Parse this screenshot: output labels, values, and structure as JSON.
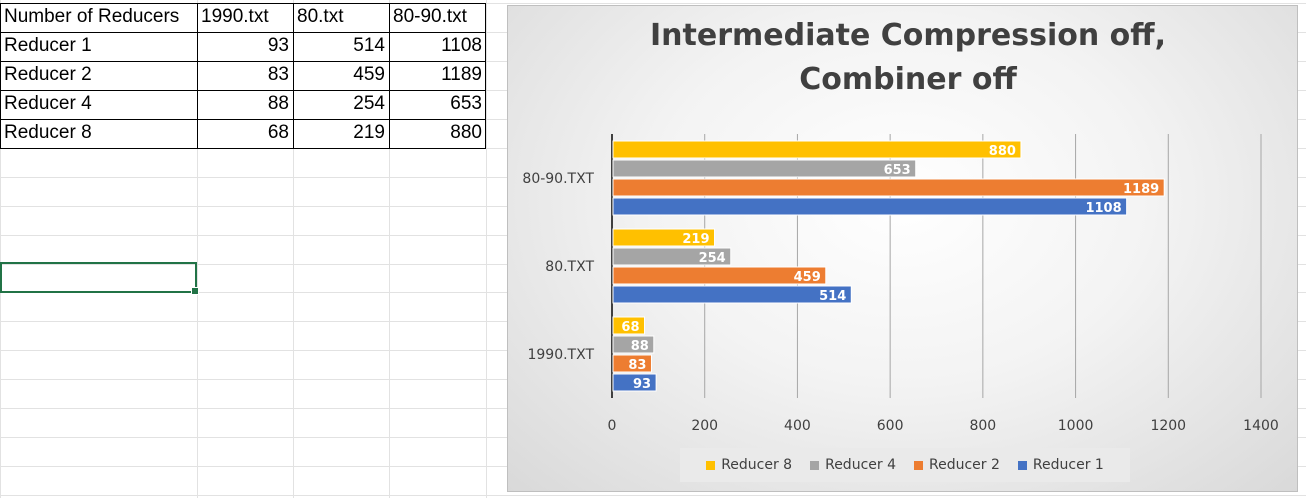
{
  "table": {
    "headers": [
      "Number of Reducers",
      "1990.txt",
      "80.txt",
      "80-90.txt"
    ],
    "rows": [
      {
        "label": "Reducer 1",
        "values": [
          "93",
          "514",
          "1108"
        ]
      },
      {
        "label": "Reducer 2",
        "values": [
          "83",
          "459",
          "1189"
        ]
      },
      {
        "label": "Reducer 4",
        "values": [
          "88",
          "254",
          "653"
        ]
      },
      {
        "label": "Reducer 8",
        "values": [
          "68",
          "219",
          "880"
        ]
      }
    ]
  },
  "chart_data": {
    "type": "bar",
    "orientation": "horizontal",
    "title": "Intermediate Compression off, Combiner off",
    "categories": [
      "1990.TXT",
      "80.TXT",
      "80-90.TXT"
    ],
    "series": [
      {
        "name": "Reducer 1",
        "values": [
          93,
          514,
          1108
        ],
        "color": "#4472c4"
      },
      {
        "name": "Reducer 2",
        "values": [
          83,
          459,
          1189
        ],
        "color": "#ed7d31"
      },
      {
        "name": "Reducer 4",
        "values": [
          88,
          254,
          653
        ],
        "color": "#a5a5a5"
      },
      {
        "name": "Reducer 8",
        "values": [
          68,
          219,
          880
        ],
        "color": "#ffc000"
      }
    ],
    "xlim": [
      0,
      1400
    ],
    "ticks": [
      0,
      200,
      400,
      600,
      800,
      1000,
      1200,
      1400
    ],
    "grid": true,
    "legend_position": "bottom",
    "legend_order": [
      "Reducer 8",
      "Reducer 4",
      "Reducer 2",
      "Reducer 1"
    ],
    "data_labels": true
  }
}
